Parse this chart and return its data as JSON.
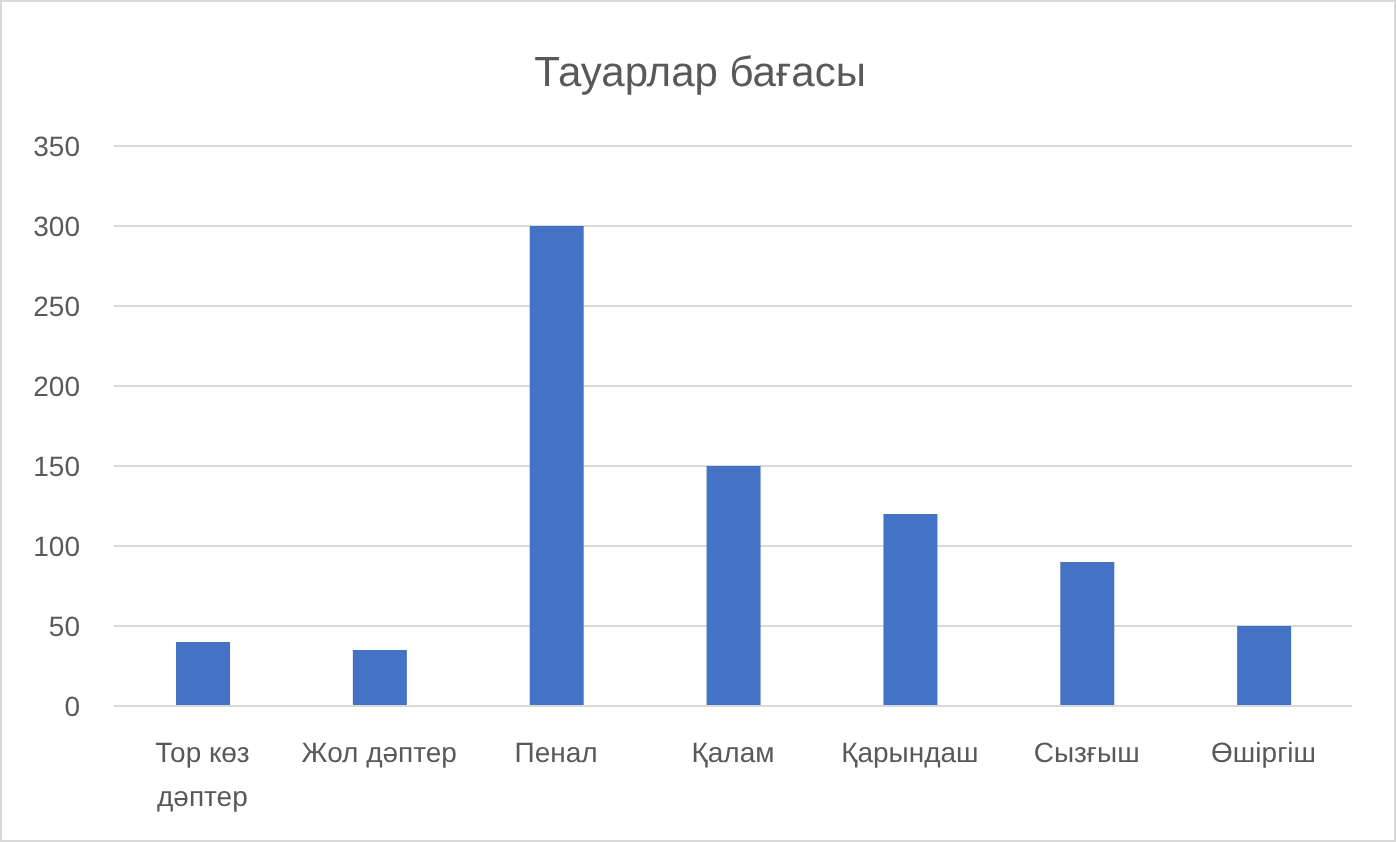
{
  "chart_data": {
    "type": "bar",
    "title": "Тауарлар бағасы",
    "categories": [
      "Тор көз дәптер",
      "Жол дәптер",
      "Пенал",
      "Қалам",
      "Қарындаш",
      "Сызғыш",
      "Өшіргіш"
    ],
    "values": [
      40,
      35,
      300,
      150,
      120,
      90,
      50
    ],
    "color": "#4472c4",
    "ylim": [
      0,
      350
    ],
    "yticks": [
      0,
      50,
      100,
      150,
      200,
      250,
      300,
      350
    ],
    "grid": "y"
  }
}
